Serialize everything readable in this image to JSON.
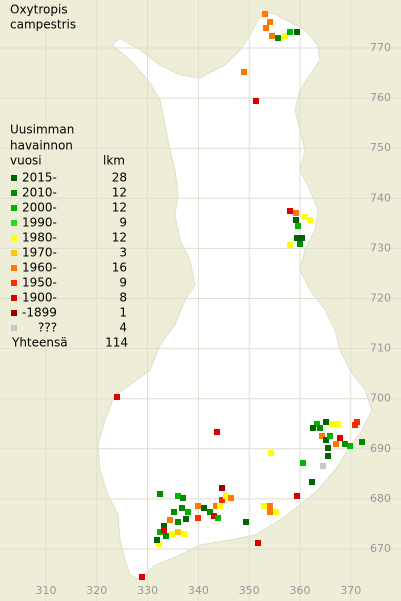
{
  "title": [
    "Oxytropis",
    "campestris"
  ],
  "legend": {
    "heading": [
      "Uusimman",
      "havainnon",
      "vuosi"
    ],
    "count_heading": "lkm",
    "rows": [
      {
        "label": "2015-",
        "count": 28,
        "color": "#006400"
      },
      {
        "label": "2010-",
        "count": 12,
        "color": "#008c00"
      },
      {
        "label": "2000-",
        "count": 12,
        "color": "#00b400"
      },
      {
        "label": "1990-",
        "count": 9,
        "color": "#20e020"
      },
      {
        "label": "1980-",
        "count": 12,
        "color": "#ffff00"
      },
      {
        "label": "1970-",
        "count": 3,
        "color": "#ffc800"
      },
      {
        "label": "1960-",
        "count": 16,
        "color": "#ff7800"
      },
      {
        "label": "1950-",
        "count": 9,
        "color": "#ff2800"
      },
      {
        "label": "1900-",
        "count": 8,
        "color": "#dc0000"
      },
      {
        "label": "-1899",
        "count": 1,
        "color": "#a00000"
      },
      {
        "label": "???",
        "count": 4,
        "color": "#c8c8c8"
      }
    ],
    "total": {
      "label": "Yhteensä",
      "count": 114
    }
  },
  "grid": {
    "north": [
      770,
      760,
      750,
      740,
      730,
      720,
      710,
      700,
      690,
      680,
      670
    ],
    "east": [
      310,
      320,
      330,
      340,
      350,
      360,
      370
    ]
  }
}
